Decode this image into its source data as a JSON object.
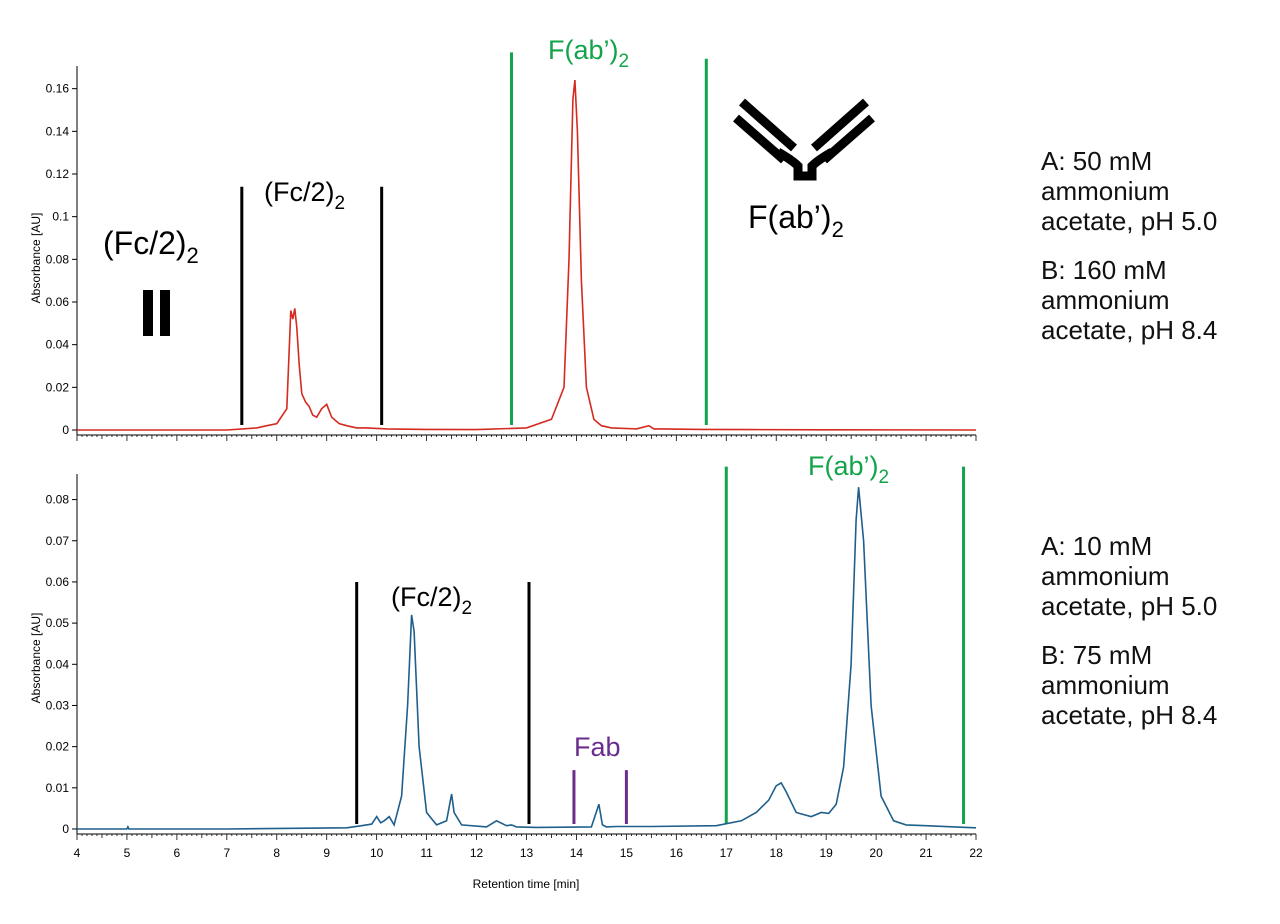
{
  "colors": {
    "top_trace": "#d42a20",
    "bottom_trace": "#1f5f8b",
    "green": "#13a34a",
    "black": "#000000",
    "purple": "#6a2c8f",
    "axis": "#000000"
  },
  "conditions": [
    {
      "a_lines": [
        "A: 50 mM",
        "ammonium",
        "acetate, pH 5.0"
      ],
      "b_lines": [
        "B: 160 mM",
        "ammonium",
        "acetate, pH 8.4"
      ]
    },
    {
      "a_lines": [
        "A: 10 mM",
        "ammonium",
        "acetate, pH 5.0"
      ],
      "b_lines": [
        "B: 75 mM",
        "ammonium",
        "acetate, pH 8.4"
      ]
    }
  ],
  "chart_data": [
    {
      "type": "line",
      "ylabel": "Absorbance [AU]",
      "xlim": [
        4,
        22
      ],
      "ylim": [
        0,
        0.165
      ],
      "yticks": [
        0,
        0.02,
        0.04,
        0.06,
        0.08,
        0.1,
        0.12,
        0.14,
        0.16
      ],
      "ytick_labels": [
        "0",
        "0.02",
        "0.04",
        "0.06",
        "0.08",
        "0.1",
        "0.12",
        "0.14",
        "0.16"
      ],
      "x": [
        4,
        7,
        7.6,
        7.8,
        8.0,
        8.2,
        8.28,
        8.32,
        8.36,
        8.4,
        8.45,
        8.5,
        8.58,
        8.65,
        8.72,
        8.8,
        8.9,
        9.0,
        9.1,
        9.25,
        9.4,
        9.6,
        9.8,
        10.2,
        11,
        12,
        13,
        13.5,
        13.75,
        13.85,
        13.93,
        13.97,
        14.02,
        14.1,
        14.2,
        14.35,
        14.5,
        14.7,
        15.2,
        15.45,
        15.55,
        15.7,
        16.5,
        17.5,
        19,
        22
      ],
      "y": [
        0,
        0,
        0.001,
        0.002,
        0.003,
        0.01,
        0.056,
        0.052,
        0.057,
        0.048,
        0.03,
        0.017,
        0.013,
        0.011,
        0.007,
        0.006,
        0.01,
        0.012,
        0.006,
        0.003,
        0.002,
        0.001,
        0.001,
        0.0005,
        0.0003,
        0.0002,
        0.001,
        0.005,
        0.02,
        0.08,
        0.155,
        0.164,
        0.14,
        0.07,
        0.02,
        0.005,
        0.002,
        0.001,
        0.0005,
        0.002,
        0.0005,
        0.0005,
        0.0003,
        0.0002,
        0.0001,
        0
      ],
      "markers": [
        {
          "color": "black",
          "x": 7.3,
          "y_top": 0.114
        },
        {
          "color": "black",
          "x": 10.1,
          "y_top": 0.114
        },
        {
          "color": "green",
          "x": 12.7,
          "y_top": 0.177
        },
        {
          "color": "green",
          "x": 16.6,
          "y_top": 0.174
        }
      ],
      "labels": [
        {
          "id": "fc2-top",
          "base": "(Fc/2)",
          "sub": "2"
        },
        {
          "id": "fc2-left",
          "base": "(Fc/2)",
          "sub": "2"
        },
        {
          "id": "fab2-green",
          "base": "F(ab’)",
          "sub": "2"
        },
        {
          "id": "fab2-black",
          "base": "F(ab’)",
          "sub": "2"
        }
      ]
    },
    {
      "type": "line",
      "xlabel": "Retention time [min]",
      "ylabel": "Absorbance [AU]",
      "xlim": [
        4,
        22
      ],
      "ylim": [
        0,
        0.0833
      ],
      "xticks": [
        4,
        5,
        6,
        7,
        8,
        9,
        10,
        11,
        12,
        13,
        14,
        15,
        16,
        17,
        18,
        19,
        20,
        21,
        22
      ],
      "yticks": [
        0,
        0.01,
        0.02,
        0.03,
        0.04,
        0.05,
        0.06,
        0.07,
        0.08
      ],
      "ytick_labels": [
        "0",
        "0.01",
        "0.02",
        "0.03",
        "0.04",
        "0.05",
        "0.06",
        "0.07",
        "0.08"
      ],
      "x": [
        4,
        5,
        5.02,
        5.04,
        7,
        9.4,
        9.7,
        9.9,
        10.0,
        10.08,
        10.15,
        10.25,
        10.35,
        10.5,
        10.62,
        10.7,
        10.75,
        10.85,
        11.0,
        11.2,
        11.4,
        11.5,
        11.55,
        11.7,
        12.2,
        12.4,
        12.6,
        12.7,
        12.8,
        13.2,
        14.3,
        14.45,
        14.52,
        14.6,
        14.8,
        15.5,
        16.8,
        17.3,
        17.6,
        17.85,
        18.0,
        18.1,
        18.2,
        18.4,
        18.7,
        18.9,
        19.05,
        19.2,
        19.35,
        19.5,
        19.6,
        19.65,
        19.75,
        19.9,
        20.1,
        20.35,
        20.6,
        21.0,
        21.8,
        22
      ],
      "y": [
        0,
        0,
        0.0005,
        0,
        0,
        0.0003,
        0.0008,
        0.0012,
        0.003,
        0.0015,
        0.002,
        0.003,
        0.001,
        0.008,
        0.03,
        0.052,
        0.048,
        0.02,
        0.004,
        0.001,
        0.002,
        0.0085,
        0.004,
        0.001,
        0.0005,
        0.002,
        0.0008,
        0.001,
        0.0005,
        0.0004,
        0.0005,
        0.006,
        0.001,
        0.0005,
        0.0006,
        0.0006,
        0.0008,
        0.002,
        0.004,
        0.007,
        0.0105,
        0.0112,
        0.009,
        0.004,
        0.003,
        0.004,
        0.0038,
        0.006,
        0.015,
        0.04,
        0.075,
        0.083,
        0.07,
        0.03,
        0.008,
        0.002,
        0.001,
        0.0008,
        0.0004,
        0.0003
      ],
      "markers": [
        {
          "color": "black",
          "x": 9.6,
          "y_top": 0.06
        },
        {
          "color": "black",
          "x": 13.05,
          "y_top": 0.06
        },
        {
          "color": "purple",
          "x": 13.95,
          "y_top": 0.0143
        },
        {
          "color": "purple",
          "x": 15.0,
          "y_top": 0.0143
        },
        {
          "color": "green",
          "x": 17.0,
          "y_top": 0.088
        },
        {
          "color": "green",
          "x": 21.75,
          "y_top": 0.088
        }
      ],
      "labels": [
        {
          "id": "fc2",
          "base": "(Fc/2)",
          "sub": "2"
        },
        {
          "id": "fab2-green",
          "base": "F(ab’)",
          "sub": "2"
        },
        {
          "id": "fab",
          "base": "Fab",
          "sub": ""
        }
      ]
    }
  ]
}
